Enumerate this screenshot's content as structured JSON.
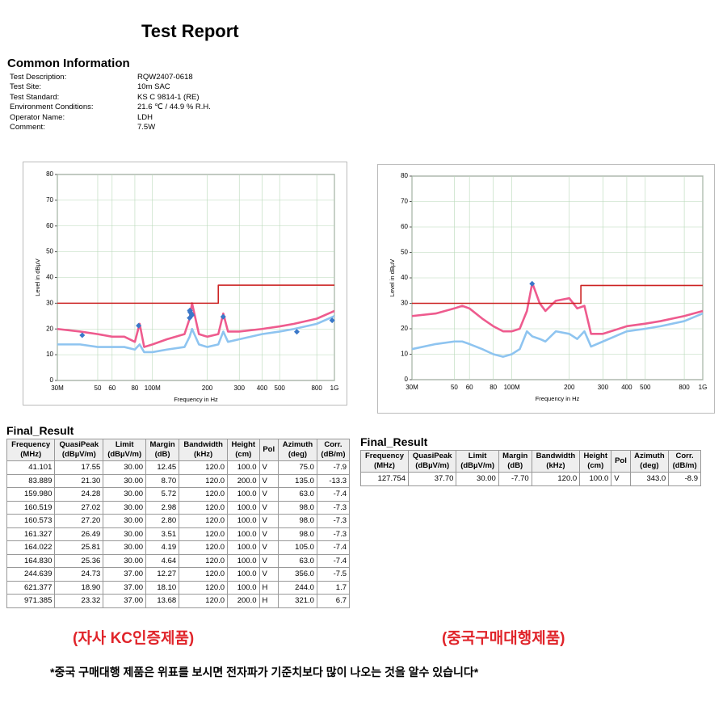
{
  "header": {
    "title": "Test Report"
  },
  "common_information": {
    "heading": "Common Information",
    "items": [
      [
        "Test Description:",
        "RQW2407-0618"
      ],
      [
        "Test Site:",
        "10m SAC"
      ],
      [
        "Test Standard:",
        "KS C 9814-1 (RE)"
      ],
      [
        "Environment Conditions:",
        "21.6 ℃ / 44.9 % R.H."
      ],
      [
        "Operator Name:",
        "LDH"
      ],
      [
        "Comment:",
        "7.5W"
      ]
    ]
  },
  "chart_data": [
    {
      "type": "line",
      "xlabel": "Frequency in Hz",
      "ylabel": "Level in dBµV",
      "log_x": true,
      "grid": true,
      "xlim": [
        30,
        1000
      ],
      "ylim": [
        0,
        80
      ],
      "xticks": [
        {
          "value": 30,
          "label": "30M"
        },
        50,
        60,
        80,
        {
          "value": 100,
          "label": "100M"
        },
        200,
        300,
        400,
        500,
        800,
        {
          "value": 1000,
          "label": "1G"
        }
      ],
      "yticks": [
        0,
        10,
        20,
        30,
        40,
        50,
        60,
        70,
        80
      ],
      "series": [
        {
          "color": "#8ec4f0",
          "x": [
            30,
            40,
            50,
            60,
            70,
            80,
            85,
            90,
            100,
            120,
            150,
            160,
            165,
            180,
            200,
            230,
            245,
            260,
            300,
            400,
            500,
            600,
            800,
            1000
          ],
          "values": [
            14,
            14,
            13,
            13,
            13,
            12,
            14,
            11,
            11,
            12,
            13,
            17,
            20,
            14,
            13,
            14,
            19,
            15,
            16,
            18,
            19,
            20,
            22,
            25
          ]
        },
        {
          "color": "#ee5b8e",
          "x": [
            30,
            40,
            50,
            60,
            70,
            80,
            85,
            90,
            100,
            120,
            150,
            160,
            165,
            180,
            200,
            230,
            245,
            260,
            300,
            400,
            500,
            600,
            800,
            1000
          ],
          "values": [
            20,
            19,
            18,
            17,
            17,
            15,
            22,
            13,
            14,
            16,
            18,
            24,
            30,
            18,
            17,
            18,
            26,
            19,
            19,
            20,
            21,
            22,
            24,
            27
          ]
        },
        {
          "color": "#cc2222",
          "x": [
            30,
            230,
            230,
            1000
          ],
          "values": [
            30,
            30,
            37,
            37
          ]
        }
      ],
      "marker_color": "#3a78c9"
    },
    {
      "type": "line",
      "xlabel": "Frequency in Hz",
      "ylabel": "Level in dBµV",
      "log_x": true,
      "grid": true,
      "xlim": [
        30,
        1000
      ],
      "ylim": [
        0,
        80
      ],
      "xticks": [
        {
          "value": 30,
          "label": "30M"
        },
        50,
        60,
        80,
        {
          "value": 100,
          "label": "100M"
        },
        200,
        300,
        400,
        500,
        800,
        {
          "value": 1000,
          "label": "1G"
        }
      ],
      "yticks": [
        0,
        10,
        20,
        30,
        40,
        50,
        60,
        70,
        80
      ],
      "series": [
        {
          "color": "#8ec4f0",
          "x": [
            30,
            40,
            50,
            55,
            60,
            70,
            80,
            90,
            100,
            110,
            120,
            128,
            140,
            150,
            170,
            200,
            220,
            240,
            260,
            300,
            400,
            500,
            600,
            800,
            1000
          ],
          "values": [
            12,
            14,
            15,
            15,
            14,
            12,
            10,
            9,
            10,
            12,
            19,
            17,
            16,
            15,
            19,
            18,
            16,
            19,
            13,
            15,
            19,
            20,
            21,
            23,
            26
          ]
        },
        {
          "color": "#ee5b8e",
          "x": [
            30,
            40,
            50,
            55,
            60,
            70,
            80,
            90,
            100,
            110,
            120,
            128,
            140,
            150,
            170,
            200,
            220,
            240,
            260,
            300,
            400,
            500,
            600,
            800,
            1000
          ],
          "values": [
            25,
            26,
            28,
            29,
            28,
            24,
            21,
            19,
            19,
            20,
            27,
            38,
            30,
            27,
            31,
            32,
            28,
            29,
            18,
            18,
            21,
            22,
            23,
            25,
            27
          ]
        },
        {
          "color": "#cc2222",
          "x": [
            30,
            230,
            230,
            1000
          ],
          "values": [
            30,
            30,
            37,
            37
          ]
        }
      ],
      "marker_color": "#3a78c9"
    }
  ],
  "final_result_left": {
    "title": "Final_Result",
    "headers": [
      [
        "Frequency",
        "(MHz)"
      ],
      [
        "QuasiPeak",
        "(dBµV/m)"
      ],
      [
        "Limit",
        "(dBµV/m)"
      ],
      [
        "Margin",
        "(dB)"
      ],
      [
        "Bandwidth",
        "(kHz)"
      ],
      [
        "Height",
        "(cm)"
      ],
      [
        "Pol"
      ],
      [
        "Azimuth",
        "(deg)"
      ],
      [
        "Corr.",
        "(dB/m)"
      ]
    ],
    "rows": [
      [
        "41.101",
        "17.55",
        "30.00",
        "12.45",
        "120.0",
        "100.0",
        "V",
        "75.0",
        "-7.9"
      ],
      [
        "83.889",
        "21.30",
        "30.00",
        "8.70",
        "120.0",
        "200.0",
        "V",
        "135.0",
        "-13.3"
      ],
      [
        "159.980",
        "24.28",
        "30.00",
        "5.72",
        "120.0",
        "100.0",
        "V",
        "63.0",
        "-7.4"
      ],
      [
        "160.519",
        "27.02",
        "30.00",
        "2.98",
        "120.0",
        "100.0",
        "V",
        "98.0",
        "-7.3"
      ],
      [
        "160.573",
        "27.20",
        "30.00",
        "2.80",
        "120.0",
        "100.0",
        "V",
        "98.0",
        "-7.3"
      ],
      [
        "161.327",
        "26.49",
        "30.00",
        "3.51",
        "120.0",
        "100.0",
        "V",
        "98.0",
        "-7.3"
      ],
      [
        "164.022",
        "25.81",
        "30.00",
        "4.19",
        "120.0",
        "100.0",
        "V",
        "105.0",
        "-7.4"
      ],
      [
        "164.830",
        "25.36",
        "30.00",
        "4.64",
        "120.0",
        "100.0",
        "V",
        "63.0",
        "-7.4"
      ],
      [
        "244.639",
        "24.73",
        "37.00",
        "12.27",
        "120.0",
        "100.0",
        "V",
        "356.0",
        "-7.5"
      ],
      [
        "621.377",
        "18.90",
        "37.00",
        "18.10",
        "120.0",
        "100.0",
        "H",
        "244.0",
        "1.7"
      ],
      [
        "971.385",
        "23.32",
        "37.00",
        "13.68",
        "120.0",
        "200.0",
        "H",
        "321.0",
        "6.7"
      ]
    ]
  },
  "final_result_right": {
    "title": "Final_Result",
    "headers": [
      [
        "Frequency",
        "(MHz)"
      ],
      [
        "QuasiPeak",
        "(dBµV/m)"
      ],
      [
        "Limit",
        "(dBµV/m)"
      ],
      [
        "Margin",
        "(dB)"
      ],
      [
        "Bandwidth",
        "(kHz)"
      ],
      [
        "Height",
        "(cm)"
      ],
      [
        "Pol"
      ],
      [
        "Azimuth",
        "(deg)"
      ],
      [
        "Corr.",
        "(dB/m)"
      ]
    ],
    "rows": [
      [
        "127.754",
        "37.70",
        "30.00",
        "-7.70",
        "120.0",
        "100.0",
        "V",
        "343.0",
        "-8.9"
      ]
    ]
  },
  "captions": {
    "left": "(자사 KC인증제품)",
    "right": "(중국구매대행제품)",
    "note": "*중국 구매대행 제품은 위표를 보시면 전자파가 기준치보다 많이 나오는 것을 알수 있습니다*"
  }
}
